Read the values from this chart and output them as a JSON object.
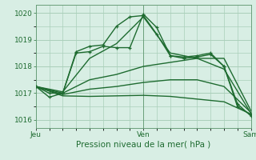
{
  "title": "",
  "xlabel": "Pression niveau de la mer( hPa )",
  "bg_color": "#d8eee4",
  "grid_color": "#aacfba",
  "line_color": "#1e6b30",
  "tick_label_color": "#1e6b30",
  "axis_label_color": "#1e6b30",
  "ylim": [
    1015.7,
    1020.3
  ],
  "yticks": [
    1016,
    1017,
    1018,
    1019,
    1020
  ],
  "series": [
    {
      "x": [
        0,
        3,
        6,
        9,
        12,
        15,
        18,
        21,
        24,
        27,
        30,
        33,
        36,
        39,
        42,
        45,
        48
      ],
      "y": [
        1017.25,
        1016.85,
        1017.0,
        1018.5,
        1018.55,
        1018.75,
        1018.7,
        1018.7,
        1019.95,
        1019.45,
        1018.4,
        1018.35,
        1018.4,
        1018.5,
        1018.0,
        1016.6,
        1016.15
      ],
      "marker": true,
      "linewidth": 1.0
    },
    {
      "x": [
        0,
        3,
        6,
        9,
        12,
        15,
        18,
        21,
        24,
        27,
        30,
        33,
        36,
        39,
        42,
        45,
        48
      ],
      "y": [
        1017.25,
        1017.0,
        1017.0,
        1018.55,
        1018.75,
        1018.8,
        1019.5,
        1019.85,
        1019.9,
        1019.2,
        1018.4,
        1018.3,
        1018.35,
        1018.45,
        1018.0,
        1016.5,
        1016.2
      ],
      "marker": true,
      "linewidth": 1.0
    },
    {
      "x": [
        0,
        6,
        12,
        18,
        24,
        30,
        36,
        42,
        48
      ],
      "y": [
        1017.25,
        1017.05,
        1018.3,
        1018.85,
        1019.85,
        1018.5,
        1018.3,
        1017.9,
        1016.25
      ],
      "marker": false,
      "linewidth": 1.0
    },
    {
      "x": [
        0,
        6,
        12,
        18,
        24,
        30,
        36,
        42,
        48
      ],
      "y": [
        1017.25,
        1017.0,
        1017.5,
        1017.7,
        1018.0,
        1018.15,
        1018.3,
        1018.3,
        1016.35
      ],
      "marker": false,
      "linewidth": 1.0
    },
    {
      "x": [
        0,
        6,
        12,
        18,
        24,
        30,
        36,
        42,
        48
      ],
      "y": [
        1017.25,
        1016.95,
        1017.15,
        1017.25,
        1017.4,
        1017.5,
        1017.5,
        1017.25,
        1016.28
      ],
      "marker": false,
      "linewidth": 1.0
    },
    {
      "x": [
        0,
        6,
        12,
        18,
        24,
        30,
        36,
        42,
        48
      ],
      "y": [
        1017.25,
        1016.9,
        1016.88,
        1016.9,
        1016.92,
        1016.88,
        1016.78,
        1016.68,
        1016.22
      ],
      "marker": false,
      "linewidth": 1.0
    }
  ],
  "vlines": [
    0,
    24,
    48
  ],
  "xtick_positions": [
    0,
    24,
    48
  ],
  "xtick_labels": [
    "Jeu",
    "Ven",
    "Sam"
  ]
}
